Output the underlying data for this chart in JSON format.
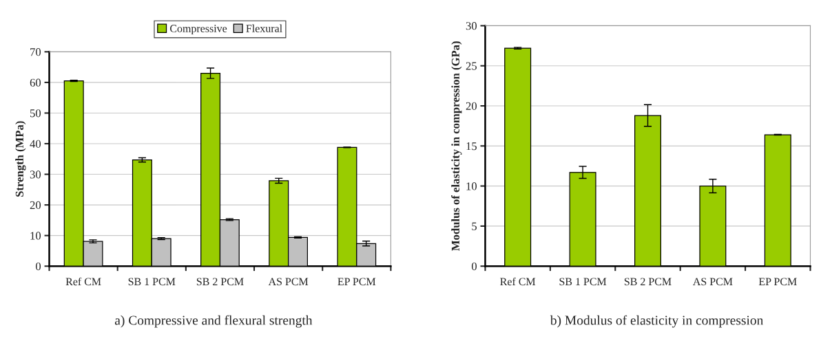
{
  "chart_data": [
    {
      "type": "bar",
      "ylabel": "Strength (MPa)",
      "categories": [
        "Ref CM",
        "SB 1 PCM",
        "SB 2 PCM",
        "AS PCM",
        "EP PCM"
      ],
      "series": [
        {
          "name": "Compressive",
          "color": "#99cc00",
          "values": [
            60.5,
            34.7,
            63.0,
            27.9,
            38.8
          ],
          "errors": [
            0.2,
            0.7,
            1.7,
            0.8,
            0.1
          ]
        },
        {
          "name": "Flexural",
          "color": "#c0c0c0",
          "values": [
            8.1,
            9.0,
            15.2,
            9.4,
            7.4
          ],
          "errors": [
            0.5,
            0.3,
            0.3,
            0.2,
            0.8
          ]
        }
      ],
      "ylim": [
        0,
        70
      ],
      "yticks": [
        0,
        10,
        20,
        30,
        40,
        50,
        60,
        70
      ],
      "grid": "y",
      "legend": "top",
      "annotations": [
        "a) Compressive and flexural strength"
      ]
    },
    {
      "type": "bar",
      "ylabel": "Modulus of elasticity in compression (GPa)",
      "categories": [
        "Ref CM",
        "SB 1 PCM",
        "SB 2 PCM",
        "AS PCM",
        "EP PCM"
      ],
      "series": [
        {
          "color": "#99cc00",
          "values": [
            27.2,
            11.7,
            18.8,
            10.0,
            16.4
          ],
          "errors": [
            0.1,
            0.75,
            1.35,
            0.85,
            0.05
          ]
        }
      ],
      "ylim": [
        0,
        30
      ],
      "yticks": [
        0,
        5,
        10,
        15,
        20,
        25,
        30
      ],
      "grid": "y",
      "annotations": [
        "b) Modulus of elasticity in compression"
      ]
    }
  ]
}
